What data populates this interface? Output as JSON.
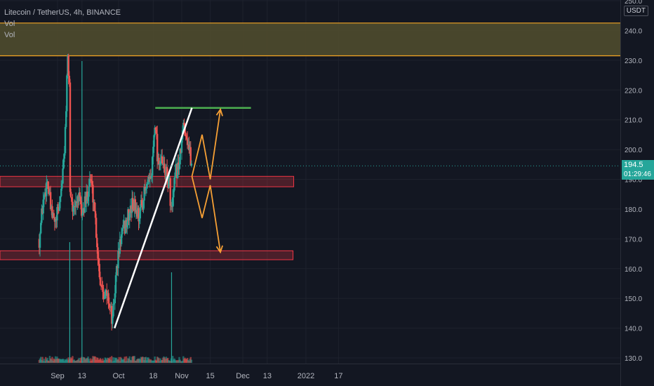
{
  "header": {
    "title": "Litecoin / TetherUS, 4h, BINANCE",
    "indicator_1": "Vol",
    "indicator_2": "Vol"
  },
  "currency_label": "USDT",
  "last_price": {
    "value": "194.5",
    "countdown": "01:29:46",
    "color": "#26a69a"
  },
  "colors": {
    "background": "#131722",
    "grid": "#1e222d",
    "up": "#26a69a",
    "down": "#ef5350",
    "zone_fill": "#4f4b2e",
    "zone_border": "#f5a623",
    "support_box": "#f23645",
    "resistance_line": "#4caf50",
    "trendline": "#ffffff",
    "projection": "#f7a035"
  },
  "chart_data": {
    "type": "candlestick",
    "title": "Litecoin / TetherUS, 4h, BINANCE",
    "x_tick_labels": [
      "Sep",
      "13",
      "Oct",
      "18",
      "Nov",
      "15",
      "Dec",
      "13",
      "2022",
      "17"
    ],
    "y_tick_labels": [
      "130.0",
      "140.0",
      "150.0",
      "160.0",
      "170.0",
      "180.0",
      "190.0",
      "200.0",
      "210.0",
      "220.0",
      "230.0",
      "240.0",
      "250.0"
    ],
    "ylim": [
      128,
      252
    ],
    "grid": true,
    "price_path": [
      {
        "date": "Aug 23",
        "close": 170
      },
      {
        "date": "Aug 25",
        "close": 183
      },
      {
        "date": "Aug 27",
        "close": 190
      },
      {
        "date": "Aug 29",
        "close": 178
      },
      {
        "date": "Aug 31",
        "close": 175
      },
      {
        "date": "Sep 2",
        "close": 182
      },
      {
        "date": "Sep 4",
        "close": 195
      },
      {
        "date": "Sep 5",
        "close": 210
      },
      {
        "date": "Sep 6",
        "close": 230
      },
      {
        "date": "Sep 7",
        "close": 220
      },
      {
        "date": "Sep 7",
        "close": 188
      },
      {
        "date": "Sep 9",
        "close": 178
      },
      {
        "date": "Sep 11",
        "close": 185
      },
      {
        "date": "Sep 13",
        "close": 178
      },
      {
        "date": "Sep 15",
        "close": 183
      },
      {
        "date": "Sep 17",
        "close": 191
      },
      {
        "date": "Sep 19",
        "close": 182
      },
      {
        "date": "Sep 21",
        "close": 163
      },
      {
        "date": "Sep 22",
        "close": 156
      },
      {
        "date": "Sep 24",
        "close": 152
      },
      {
        "date": "Sep 26",
        "close": 150
      },
      {
        "date": "Sep 28",
        "close": 142
      },
      {
        "date": "Sep 30",
        "close": 160
      },
      {
        "date": "Oct 2",
        "close": 170
      },
      {
        "date": "Oct 5",
        "close": 176
      },
      {
        "date": "Oct 8",
        "close": 182
      },
      {
        "date": "Oct 11",
        "close": 178
      },
      {
        "date": "Oct 14",
        "close": 186
      },
      {
        "date": "Oct 17",
        "close": 190
      },
      {
        "date": "Oct 19",
        "close": 212
      },
      {
        "date": "Oct 20",
        "close": 198
      },
      {
        "date": "Oct 23",
        "close": 194
      },
      {
        "date": "Oct 26",
        "close": 188
      },
      {
        "date": "Oct 27",
        "close": 178
      },
      {
        "date": "Oct 29",
        "close": 192
      },
      {
        "date": "Oct 31",
        "close": 196
      },
      {
        "date": "Nov 2",
        "close": 209
      },
      {
        "date": "Nov 4",
        "close": 203
      },
      {
        "date": "Nov 6",
        "close": 194
      }
    ],
    "volume_spikes": [
      {
        "date": "Sep 7",
        "value": 4
      },
      {
        "date": "Sep 13",
        "value": 10
      },
      {
        "date": "Oct 27",
        "value": 3
      }
    ],
    "drawings": {
      "resistance_zone": [
        231.5,
        242.5
      ],
      "support_zone_upper": [
        187.5,
        191
      ],
      "support_zone_lower": [
        163,
        166
      ],
      "resistance_line": {
        "start": "Oct 19",
        "end": "Dec 5",
        "y": 214
      },
      "trendline": {
        "start": {
          "date": "Sep 29",
          "y": 140
        },
        "end": {
          "date": "Nov 6",
          "y": 214
        }
      },
      "projection_up": [
        {
          "date": "Nov 6",
          "y": 191
        },
        {
          "date": "Nov 11",
          "y": 205
        },
        {
          "date": "Nov 15",
          "y": 190
        },
        {
          "date": "Nov 20",
          "y": 213.5
        }
      ],
      "projection_down": [
        {
          "date": "Nov 6",
          "y": 191
        },
        {
          "date": "Nov 11",
          "y": 177
        },
        {
          "date": "Nov 15",
          "y": 188
        },
        {
          "date": "Nov 20",
          "y": 165.5
        }
      ]
    }
  }
}
